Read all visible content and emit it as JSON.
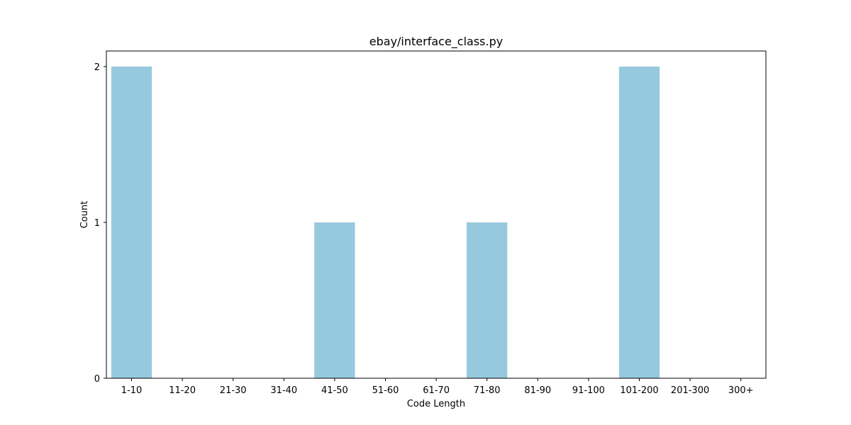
{
  "chart_data": {
    "type": "bar",
    "title": "ebay/interface_class.py",
    "xlabel": "Code Length",
    "ylabel": "Count",
    "categories": [
      "1-10",
      "11-20",
      "21-30",
      "31-40",
      "41-50",
      "51-60",
      "61-70",
      "71-80",
      "81-90",
      "91-100",
      "101-200",
      "201-300",
      "300+"
    ],
    "values": [
      2,
      0,
      0,
      0,
      1,
      0,
      0,
      1,
      0,
      0,
      2,
      0,
      0
    ],
    "yticks": [
      0,
      1,
      2
    ],
    "ylim": [
      0,
      2.1
    ],
    "grid": false,
    "bar_color": "#96c9dd",
    "legend": false
  }
}
